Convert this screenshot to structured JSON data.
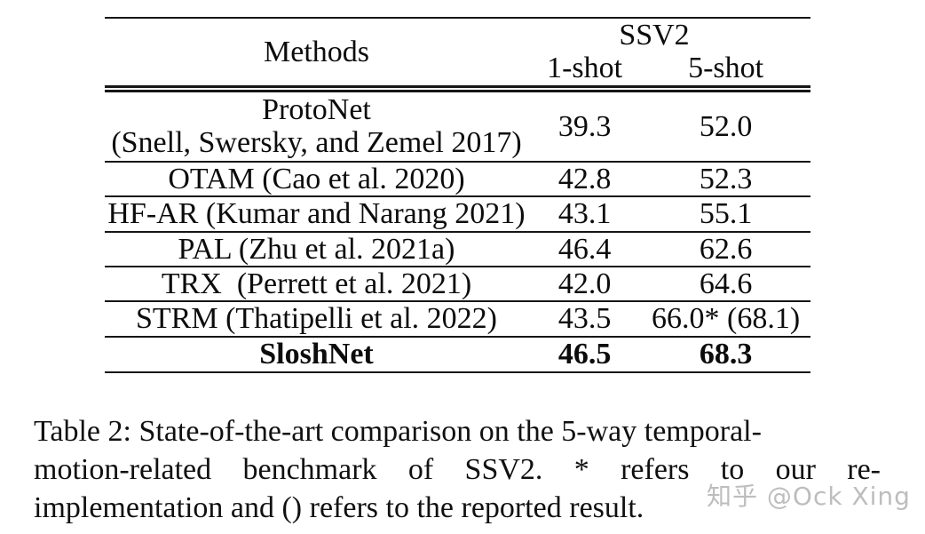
{
  "table": {
    "header": {
      "methods": "Methods",
      "dataset": "SSV2",
      "one_shot": "1-shot",
      "five_shot": "5-shot"
    },
    "rows": [
      {
        "method": "ProtoNet",
        "citation": "(Snell, Swersky, and Zemel 2017)",
        "one_shot": "39.3",
        "five_shot": "52.0"
      },
      {
        "method": "OTAM (Cao et al. 2020)",
        "one_shot": "42.8",
        "five_shot": "52.3"
      },
      {
        "method": "HF-AR (Kumar and Narang 2021)",
        "one_shot": "43.1",
        "five_shot": "55.1"
      },
      {
        "method": "PAL (Zhu et al. 2021a)",
        "one_shot": "46.4",
        "five_shot": "62.6"
      },
      {
        "method": "TRX  (Perrett et al. 2021)",
        "one_shot": "42.0",
        "five_shot": "64.6"
      },
      {
        "method": "STRM (Thatipelli et al. 2022)",
        "one_shot": "43.5",
        "five_shot": "66.0* (68.1)"
      },
      {
        "method": "SloshNet",
        "one_shot": "46.5",
        "five_shot": "68.3"
      }
    ],
    "best_method": "SloshNet"
  },
  "caption": {
    "line1": "Table 2: State-of-the-art comparison on the 5-way temporal-",
    "line2": "motion-related benchmark of SSV2. * refers to our re-",
    "line3": "implementation and () refers to the reported result."
  },
  "watermark": {
    "text": "知乎 @Ock Xing",
    "color": "#b5b5b5"
  },
  "colors": {
    "background": "#ffffff",
    "text": "#0c0c0c",
    "rule": "#161616"
  }
}
